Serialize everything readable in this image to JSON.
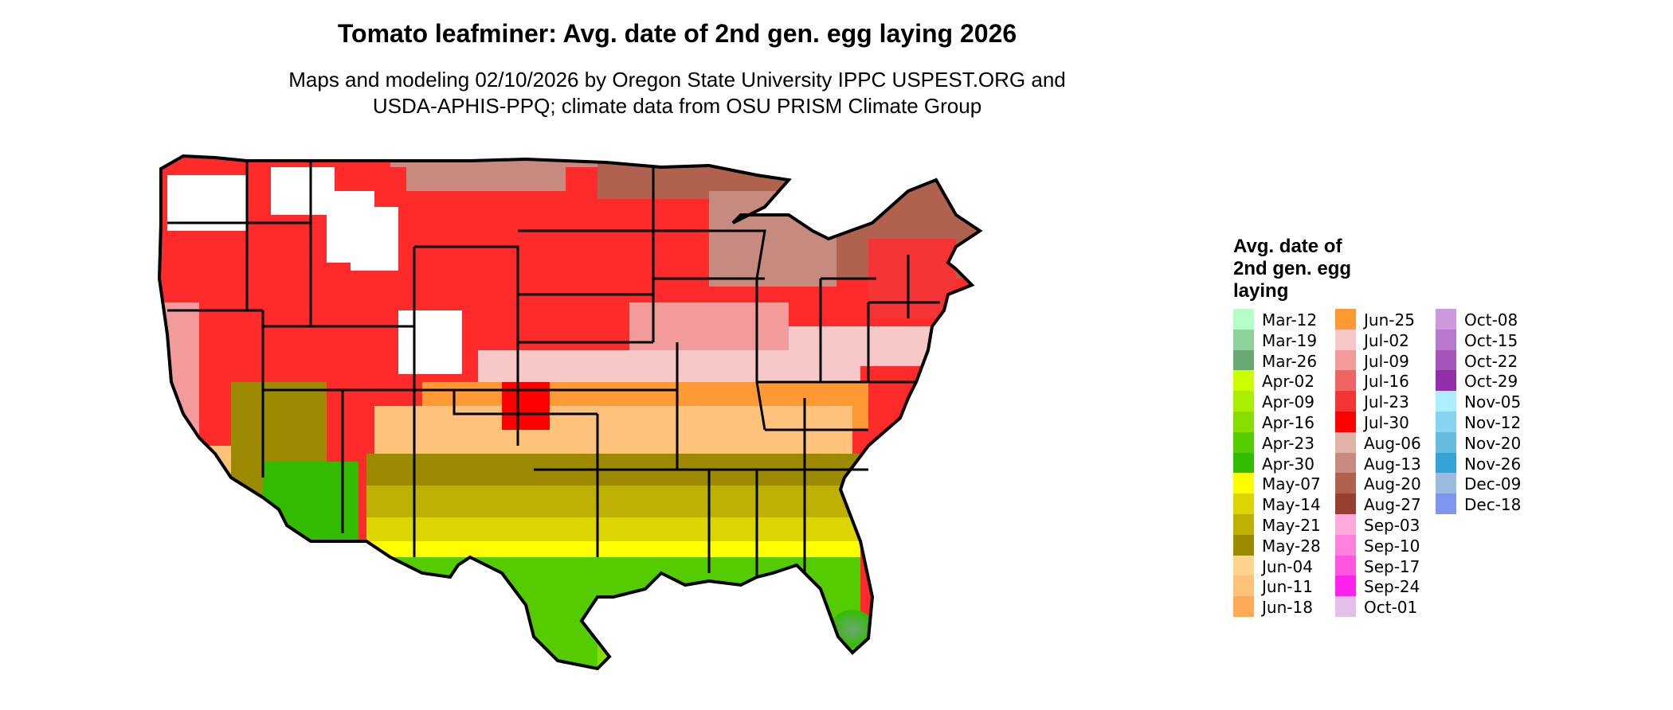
{
  "title": "Tomato leafminer: Avg. date of 2nd gen. egg laying 2026",
  "subtitle_line1": "Maps and modeling 02/10/2026 by Oregon State University IPPC USPEST.ORG and",
  "subtitle_line2": "USDA-APHIS-PPQ; climate data from OSU PRISM Climate Group",
  "legend": {
    "title_lines": [
      "Avg. date of",
      "2nd gen. egg",
      "laying"
    ],
    "items": [
      {
        "label": "Mar-12",
        "color": "#b6ffc8"
      },
      {
        "label": "Mar-19",
        "color": "#8fd29c"
      },
      {
        "label": "Mar-26",
        "color": "#6aa874"
      },
      {
        "label": "Apr-02",
        "color": "#ccff00"
      },
      {
        "label": "Apr-09",
        "color": "#aaee00"
      },
      {
        "label": "Apr-16",
        "color": "#88dd00"
      },
      {
        "label": "Apr-23",
        "color": "#55cc00"
      },
      {
        "label": "Apr-30",
        "color": "#33bb00"
      },
      {
        "label": "May-07",
        "color": "#ffff00"
      },
      {
        "label": "May-14",
        "color": "#dcd500"
      },
      {
        "label": "May-21",
        "color": "#bdb000"
      },
      {
        "label": "May-28",
        "color": "#9c8a00"
      },
      {
        "label": "Jun-04",
        "color": "#ffd48e"
      },
      {
        "label": "Jun-11",
        "color": "#ffc27a"
      },
      {
        "label": "Jun-18",
        "color": "#ffaa55"
      },
      {
        "label": "Jun-25",
        "color": "#ff9933"
      },
      {
        "label": "Jul-02",
        "color": "#f8c8c8"
      },
      {
        "label": "Jul-09",
        "color": "#f39a9a"
      },
      {
        "label": "Jul-16",
        "color": "#f26464"
      },
      {
        "label": "Jul-23",
        "color": "#f53535"
      },
      {
        "label": "Jul-30",
        "color": "#ff0000"
      },
      {
        "label": "Aug-06",
        "color": "#e2b2a8"
      },
      {
        "label": "Aug-13",
        "color": "#c68a7e"
      },
      {
        "label": "Aug-20",
        "color": "#b0624f"
      },
      {
        "label": "Aug-27",
        "color": "#984030"
      },
      {
        "label": "Sep-03",
        "color": "#ffaadd"
      },
      {
        "label": "Sep-10",
        "color": "#ff80dd"
      },
      {
        "label": "Sep-17",
        "color": "#ff55e0"
      },
      {
        "label": "Sep-24",
        "color": "#ff22ee"
      },
      {
        "label": "Oct-01",
        "color": "#e2c0e8"
      },
      {
        "label": "Oct-08",
        "color": "#cc99dd"
      },
      {
        "label": "Oct-15",
        "color": "#b878cc"
      },
      {
        "label": "Oct-22",
        "color": "#a555bb"
      },
      {
        "label": "Oct-29",
        "color": "#9230aa"
      },
      {
        "label": "Nov-05",
        "color": "#aaeeff"
      },
      {
        "label": "Nov-12",
        "color": "#88d4f0"
      },
      {
        "label": "Nov-20",
        "color": "#66bbe0"
      },
      {
        "label": "Nov-26",
        "color": "#33a4d8"
      },
      {
        "label": "Dec-09",
        "color": "#99bbdd"
      },
      {
        "label": "Dec-18",
        "color": "#7f96ee"
      }
    ]
  }
}
